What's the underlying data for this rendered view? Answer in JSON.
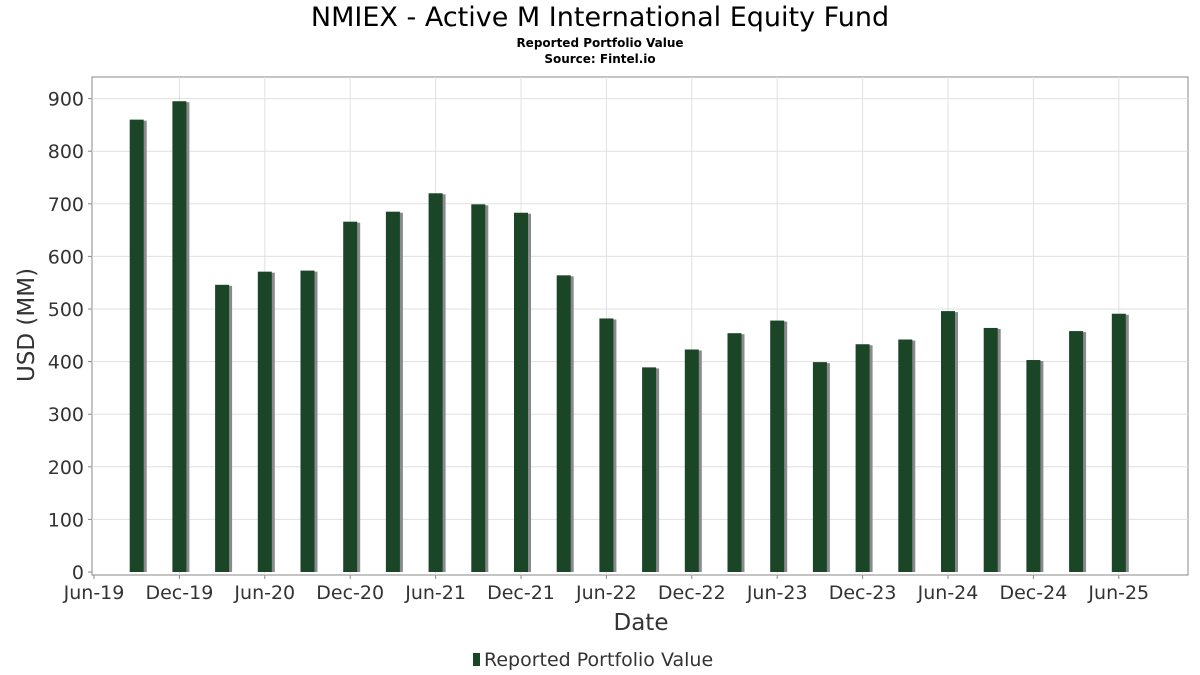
{
  "title": "NMIEX - Active M International Equity Fund",
  "subtitle": "Reported Portfolio Value",
  "source": "Source: Fintel.io",
  "chart_data": {
    "type": "bar",
    "title": "NMIEX - Active M International Equity Fund",
    "subtitle": "Reported Portfolio Value",
    "xlabel": "Date",
    "ylabel": "USD (MM)",
    "ylim": [
      0,
      940
    ],
    "yticks": [
      0,
      100,
      200,
      300,
      400,
      500,
      600,
      700,
      800,
      900
    ],
    "x_tick_labels": [
      "Jun-19",
      "Dec-19",
      "Jun-20",
      "Dec-20",
      "Jun-21",
      "Dec-21",
      "Jun-22",
      "Dec-22",
      "Jun-23",
      "Dec-23",
      "Jun-24",
      "Dec-24",
      "Jun-25"
    ],
    "x_range": [
      "2019-06",
      "2025-09"
    ],
    "grid": true,
    "legend_position": "bottom-center",
    "series": [
      {
        "name": "Reported Portfolio Value",
        "color": "#1a4526",
        "points": [
          {
            "date": "2019-09",
            "value": 860
          },
          {
            "date": "2019-12",
            "value": 895
          },
          {
            "date": "2020-03",
            "value": 546
          },
          {
            "date": "2020-06",
            "value": 571
          },
          {
            "date": "2020-09",
            "value": 573
          },
          {
            "date": "2020-12",
            "value": 666
          },
          {
            "date": "2021-03",
            "value": 685
          },
          {
            "date": "2021-06",
            "value": 720
          },
          {
            "date": "2021-09",
            "value": 699
          },
          {
            "date": "2021-12",
            "value": 683
          },
          {
            "date": "2022-03",
            "value": 564
          },
          {
            "date": "2022-06",
            "value": 482
          },
          {
            "date": "2022-09",
            "value": 389
          },
          {
            "date": "2022-12",
            "value": 423
          },
          {
            "date": "2023-03",
            "value": 454
          },
          {
            "date": "2023-06",
            "value": 478
          },
          {
            "date": "2023-09",
            "value": 399
          },
          {
            "date": "2023-12",
            "value": 433
          },
          {
            "date": "2024-03",
            "value": 442
          },
          {
            "date": "2024-06",
            "value": 496
          },
          {
            "date": "2024-09",
            "value": 464
          },
          {
            "date": "2024-12",
            "value": 403
          },
          {
            "date": "2025-03",
            "value": 458
          },
          {
            "date": "2025-06",
            "value": 491
          }
        ]
      }
    ]
  }
}
